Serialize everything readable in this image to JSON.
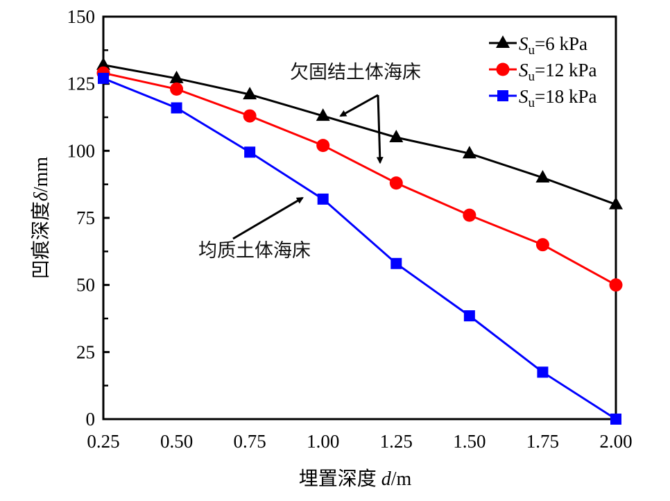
{
  "chart_data": {
    "type": "line",
    "title": "",
    "xlabel": {
      "prefix": "埋置深度 ",
      "var": "d",
      "unit": "/m"
    },
    "ylabel": {
      "prefix": "凹痕深度",
      "var": "δ",
      "unit": "/mm"
    },
    "xlim": [
      0.25,
      2.0
    ],
    "ylim": [
      0,
      150
    ],
    "grid": false,
    "legend_position": "top-right",
    "x": [
      0.25,
      0.5,
      0.75,
      1.0,
      1.25,
      1.5,
      1.75,
      2.0
    ],
    "x_tick_labels": [
      "0.25",
      "0.50",
      "0.75",
      "1.00",
      "1.25",
      "1.50",
      "1.75",
      "2.00"
    ],
    "y_ticks": [
      0,
      25,
      50,
      75,
      100,
      125,
      150
    ],
    "y_minor_ticks": [
      12.5,
      37.5,
      62.5,
      87.5,
      112.5,
      137.5
    ],
    "series": [
      {
        "name": "Su=6 kPa",
        "symbol": "S",
        "subscript": "u",
        "suffix": "=6 kPa",
        "color": "#000000",
        "marker": "triangle",
        "values": [
          132,
          127,
          121,
          113,
          105,
          99,
          90,
          80
        ]
      },
      {
        "name": "Su=12 kPa",
        "symbol": "S",
        "subscript": "u",
        "suffix": "=12 kPa",
        "color": "#ff0000",
        "marker": "circle",
        "values": [
          129,
          123,
          113,
          102,
          88,
          76,
          65,
          50
        ]
      },
      {
        "name": "Su=18 kPa",
        "symbol": "S",
        "subscript": "u",
        "suffix": "=18 kPa",
        "color": "#0000ff",
        "marker": "square",
        "values": [
          127,
          116,
          99.5,
          82,
          58,
          38.5,
          17.5,
          0
        ]
      }
    ],
    "annotations": [
      {
        "text": "欠固结土体海床",
        "points_to": [
          {
            "x": 1.06,
            "y": 113
          },
          {
            "x": 1.18,
            "y": 92
          }
        ]
      },
      {
        "text": "均质土体海床",
        "points_to": [
          {
            "x": 0.93,
            "y": 84
          }
        ]
      }
    ]
  }
}
